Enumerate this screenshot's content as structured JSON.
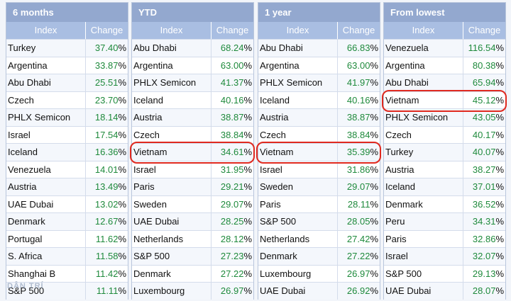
{
  "headers": {
    "index": "Index",
    "change": "Change"
  },
  "pct_symbol": "%",
  "watermark": "DÂN TRÍ",
  "highlight_color": "#e0291f",
  "panels": [
    {
      "title": "6 months",
      "rows": [
        {
          "name": "Turkey",
          "value": "37.40"
        },
        {
          "name": "Argentina",
          "value": "33.87"
        },
        {
          "name": "Abu Dhabi",
          "value": "25.51"
        },
        {
          "name": "Czech",
          "value": "23.70"
        },
        {
          "name": "PHLX Semicon",
          "value": "18.14"
        },
        {
          "name": "Israel",
          "value": "17.54"
        },
        {
          "name": "Iceland",
          "value": "16.36"
        },
        {
          "name": "Venezuela",
          "value": "14.01"
        },
        {
          "name": "Austria",
          "value": "13.49"
        },
        {
          "name": "UAE Dubai",
          "value": "13.02"
        },
        {
          "name": "Denmark",
          "value": "12.67"
        },
        {
          "name": "Portugal",
          "value": "11.62"
        },
        {
          "name": "S. Africa",
          "value": "11.58"
        },
        {
          "name": "Shanghai B",
          "value": "11.42"
        },
        {
          "name": "S&P 500",
          "value": "11.11"
        }
      ]
    },
    {
      "title": "YTD",
      "rows": [
        {
          "name": "Abu Dhabi",
          "value": "68.24"
        },
        {
          "name": "Argentina",
          "value": "63.00"
        },
        {
          "name": "PHLX Semicon",
          "value": "41.37"
        },
        {
          "name": "Iceland",
          "value": "40.16"
        },
        {
          "name": "Austria",
          "value": "38.87"
        },
        {
          "name": "Czech",
          "value": "38.84"
        },
        {
          "name": "Vietnam",
          "value": "34.61"
        },
        {
          "name": "Israel",
          "value": "31.95"
        },
        {
          "name": "Paris",
          "value": "29.21"
        },
        {
          "name": "Sweden",
          "value": "29.07"
        },
        {
          "name": "UAE Dubai",
          "value": "28.25"
        },
        {
          "name": "Netherlands",
          "value": "28.12"
        },
        {
          "name": "S&P 500",
          "value": "27.23"
        },
        {
          "name": "Denmark",
          "value": "27.22"
        },
        {
          "name": "Luxembourg",
          "value": "26.97"
        }
      ]
    },
    {
      "title": "1 year",
      "rows": [
        {
          "name": "Abu Dhabi",
          "value": "66.83"
        },
        {
          "name": "Argentina",
          "value": "63.00"
        },
        {
          "name": "PHLX Semicon",
          "value": "41.97"
        },
        {
          "name": "Iceland",
          "value": "40.16"
        },
        {
          "name": "Austria",
          "value": "38.87"
        },
        {
          "name": "Czech",
          "value": "38.84"
        },
        {
          "name": "Vietnam",
          "value": "35.39"
        },
        {
          "name": "Israel",
          "value": "31.86"
        },
        {
          "name": "Sweden",
          "value": "29.07"
        },
        {
          "name": "Paris",
          "value": "28.11"
        },
        {
          "name": "S&P 500",
          "value": "28.05"
        },
        {
          "name": "Netherlands",
          "value": "27.42"
        },
        {
          "name": "Denmark",
          "value": "27.22"
        },
        {
          "name": "Luxembourg",
          "value": "26.97"
        },
        {
          "name": "UAE Dubai",
          "value": "26.92"
        }
      ]
    },
    {
      "title": "From lowest",
      "rows": [
        {
          "name": "Venezuela",
          "value": "116.54"
        },
        {
          "name": "Argentina",
          "value": "80.38"
        },
        {
          "name": "Abu Dhabi",
          "value": "65.94"
        },
        {
          "name": "Vietnam",
          "value": "45.12"
        },
        {
          "name": "PHLX Semicon",
          "value": "43.05"
        },
        {
          "name": "Czech",
          "value": "40.17"
        },
        {
          "name": "Turkey",
          "value": "40.07"
        },
        {
          "name": "Austria",
          "value": "38.27"
        },
        {
          "name": "Iceland",
          "value": "37.01"
        },
        {
          "name": "Denmark",
          "value": "36.52"
        },
        {
          "name": "Peru",
          "value": "34.31"
        },
        {
          "name": "Paris",
          "value": "32.86"
        },
        {
          "name": "Israel",
          "value": "32.07"
        },
        {
          "name": "S&P 500",
          "value": "29.13"
        },
        {
          "name": "UAE Dubai",
          "value": "28.07"
        }
      ]
    }
  ]
}
